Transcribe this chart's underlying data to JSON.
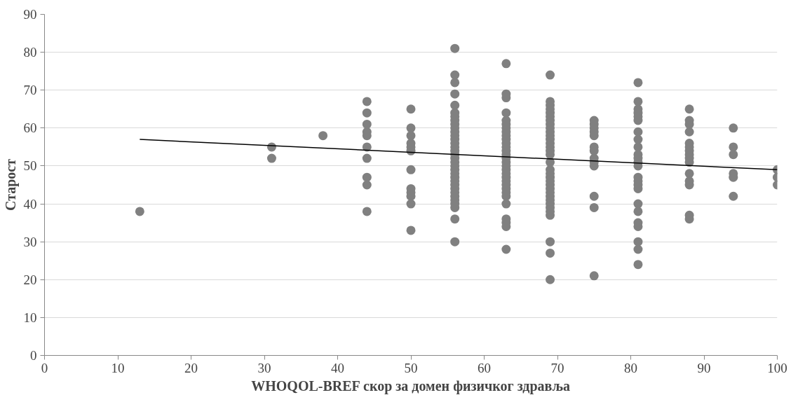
{
  "chart_data": {
    "type": "scatter",
    "xlabel": "WHOQOL-BREF скор за домен физичког здравља",
    "ylabel": "Старост",
    "xlim": [
      0,
      100
    ],
    "xticks": [
      0,
      10,
      20,
      30,
      40,
      50,
      60,
      70,
      80,
      90,
      100
    ],
    "ylim": [
      0,
      90
    ],
    "yticks": [
      0,
      10,
      20,
      30,
      40,
      50,
      60,
      70,
      80,
      90
    ],
    "grid": "y",
    "marker": "circle",
    "series": [
      {
        "color": "#808080",
        "x": [
          13,
          31,
          31,
          38,
          44,
          44,
          44,
          44,
          44,
          44,
          44,
          44,
          44,
          44,
          50,
          50,
          50,
          50,
          50,
          50,
          50,
          50,
          50,
          50,
          50,
          50,
          56,
          56,
          56,
          56,
          56,
          56,
          56,
          56,
          56,
          56,
          56,
          56,
          56,
          56,
          56,
          56,
          56,
          56,
          56,
          56,
          56,
          56,
          56,
          56,
          56,
          56,
          56,
          56,
          56,
          56,
          56,
          56,
          56,
          63,
          63,
          63,
          63,
          63,
          63,
          63,
          63,
          63,
          63,
          63,
          63,
          63,
          63,
          63,
          63,
          63,
          63,
          63,
          63,
          63,
          63,
          63,
          63,
          63,
          63,
          63,
          63,
          63,
          63,
          69,
          69,
          69,
          69,
          69,
          69,
          69,
          69,
          69,
          69,
          69,
          69,
          69,
          69,
          69,
          69,
          69,
          69,
          69,
          69,
          69,
          69,
          69,
          69,
          69,
          69,
          69,
          69,
          69,
          69,
          69,
          69,
          69,
          75,
          75,
          75,
          75,
          75,
          75,
          75,
          75,
          75,
          75,
          75,
          75,
          75,
          81,
          81,
          81,
          81,
          81,
          81,
          81,
          81,
          81,
          81,
          81,
          81,
          81,
          81,
          81,
          81,
          81,
          81,
          81,
          81,
          81,
          81,
          81,
          81,
          88,
          88,
          88,
          88,
          88,
          88,
          88,
          88,
          88,
          88,
          88,
          88,
          88,
          88,
          88,
          94,
          94,
          94,
          94,
          94,
          94,
          100,
          100,
          100
        ],
        "values": [
          38,
          55,
          52,
          58,
          67,
          64,
          61,
          59,
          58,
          55,
          52,
          47,
          45,
          38,
          65,
          60,
          58,
          56,
          55,
          54,
          49,
          44,
          43,
          42,
          40,
          33,
          81,
          74,
          72,
          69,
          66,
          64,
          63,
          62,
          61,
          60,
          59,
          58,
          57,
          56,
          55,
          54,
          53,
          52,
          51,
          50,
          49,
          48,
          47,
          46,
          45,
          44,
          43,
          42,
          41,
          40,
          39,
          36,
          30,
          77,
          69,
          68,
          64,
          62,
          61,
          60,
          59,
          58,
          57,
          56,
          55,
          54,
          53,
          52,
          51,
          50,
          49,
          48,
          47,
          46,
          45,
          44,
          43,
          42,
          40,
          36,
          35,
          34,
          28,
          74,
          67,
          66,
          65,
          64,
          63,
          62,
          61,
          60,
          59,
          58,
          57,
          56,
          55,
          54,
          53,
          51,
          49,
          48,
          47,
          46,
          45,
          44,
          43,
          42,
          41,
          40,
          39,
          38,
          37,
          30,
          27,
          20,
          62,
          61,
          60,
          59,
          58,
          55,
          54,
          52,
          51,
          50,
          42,
          39,
          21,
          72,
          67,
          65,
          64,
          63,
          62,
          59,
          57,
          55,
          53,
          52,
          51,
          50,
          47,
          46,
          45,
          44,
          40,
          38,
          35,
          34,
          30,
          28,
          24,
          65,
          62,
          61,
          59,
          56,
          55,
          54,
          53,
          52,
          51,
          48,
          46,
          45,
          37,
          36,
          60,
          55,
          53,
          48,
          47,
          42,
          49,
          47,
          45
        ]
      },
      {
        "type": "line",
        "color": "#000000",
        "x": [
          13,
          100
        ],
        "values": [
          57,
          49
        ],
        "marker": "none",
        "line_style": "solid"
      }
    ]
  }
}
